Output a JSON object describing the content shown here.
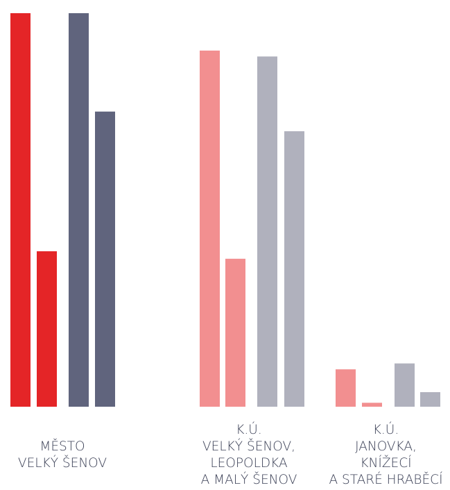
{
  "chart_data": {
    "type": "bar",
    "title": "",
    "xlabel": "",
    "ylabel": "",
    "categories": [
      [
        "MĚSTO",
        "VELKÝ ŠENOV"
      ],
      [
        "K.Ú.",
        "VELKÝ ŠENOV,",
        "LEOPOLDKA",
        "A MALÝ ŠENOV"
      ],
      [
        "K.Ú.",
        "JANOVKA,",
        "KNÍŽECÍ",
        "A STARÉ HRABĚCÍ"
      ]
    ],
    "series_colors": [
      [
        "#e42527",
        "#e42527",
        "#60647d",
        "#60647d"
      ],
      [
        "#f28f90",
        "#f28f90",
        "#b0b1bd",
        "#b0b1bd"
      ],
      [
        "#f28f90",
        "#f28f90",
        "#b0b1bd",
        "#b0b1bd"
      ]
    ],
    "values": [
      [
        100,
        39.5,
        100,
        75
      ],
      [
        90.5,
        37.6,
        89,
        70
      ],
      [
        9.5,
        1,
        11,
        3.7
      ]
    ],
    "ylim": [
      0,
      100
    ],
    "grid": false,
    "legend": "none"
  }
}
